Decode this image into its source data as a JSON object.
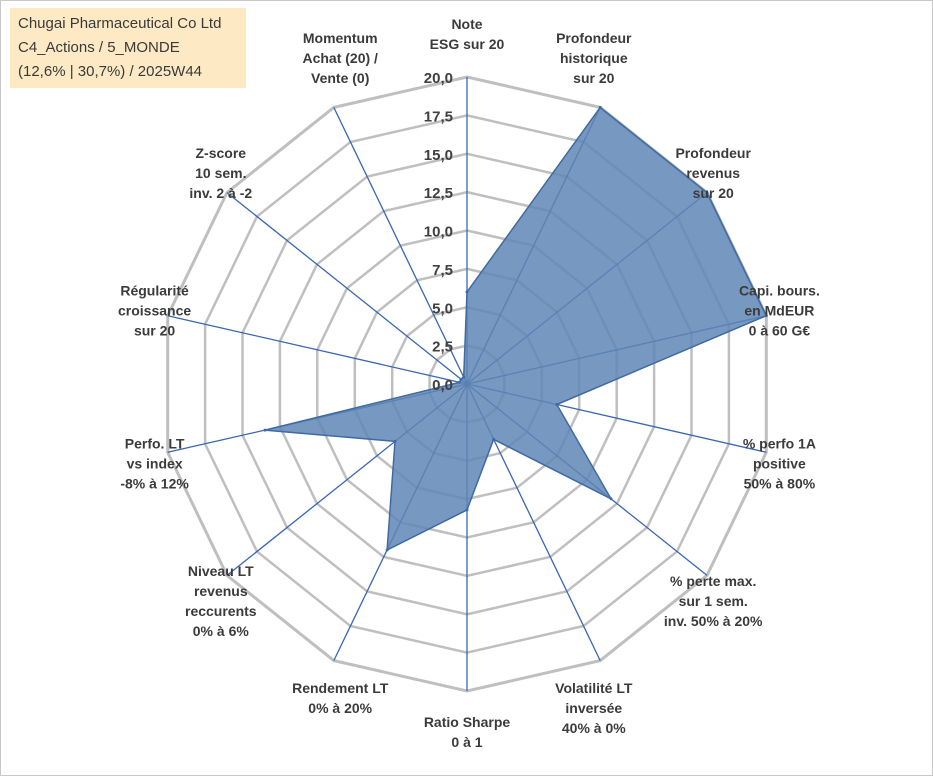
{
  "title": {
    "line1": "Chugai Pharmaceutical Co Ltd",
    "line2": "C4_Actions / 5_MONDE",
    "line3": "(12,6% | 30,7%) / 2025W44"
  },
  "chart_data": {
    "type": "radar",
    "title": "Chugai Pharmaceutical Co Ltd",
    "rmin": 0,
    "rmax": 20,
    "tick_step": 2.5,
    "tick_labels": [
      "0,0",
      "2,5",
      "5,0",
      "7,5",
      "10,0",
      "12,5",
      "15,0",
      "17,5",
      "20,0"
    ],
    "axes": [
      [
        "Note",
        "ESG sur 20"
      ],
      [
        "Profondeur",
        "historique",
        "sur 20"
      ],
      [
        "Profondeur",
        "revenus",
        "sur 20"
      ],
      [
        "Capi. bours.",
        "en MdEUR",
        "0 à 60 G€"
      ],
      [
        "% perfo 1A",
        "positive",
        "50% à 80%"
      ],
      [
        "% perte max.",
        "sur 1 sem.",
        "inv. 50% à 20%"
      ],
      [
        "Volatilité LT",
        "inversée",
        "40% à 0%"
      ],
      [
        "Ratio Sharpe",
        "0 à 1"
      ],
      [
        "Rendement LT",
        "0% à 20%"
      ],
      [
        "Niveau LT",
        "revenus",
        "reccurents",
        "0% à 6%"
      ],
      [
        "Perfo. LT",
        "vs index",
        "-8% à 12%"
      ],
      [
        "Régularité",
        "croissance",
        "sur 20"
      ],
      [
        "Z-score",
        "10 sem.",
        "inv. 2 à -2"
      ],
      [
        "Momentum",
        "Achat (20) /",
        "Vente (0)"
      ]
    ],
    "series": [
      {
        "name": "Chugai Pharmaceutical Co Ltd",
        "values": [
          6,
          20,
          20,
          20,
          6,
          12,
          4,
          8.2,
          12,
          6,
          13.5,
          0.5,
          0.5,
          0.5
        ],
        "fill": "#5f86b5",
        "stroke": "#3f6aa3"
      }
    ],
    "grid_color": "#bfbfbf",
    "spoke_color": "#3a66b0"
  }
}
